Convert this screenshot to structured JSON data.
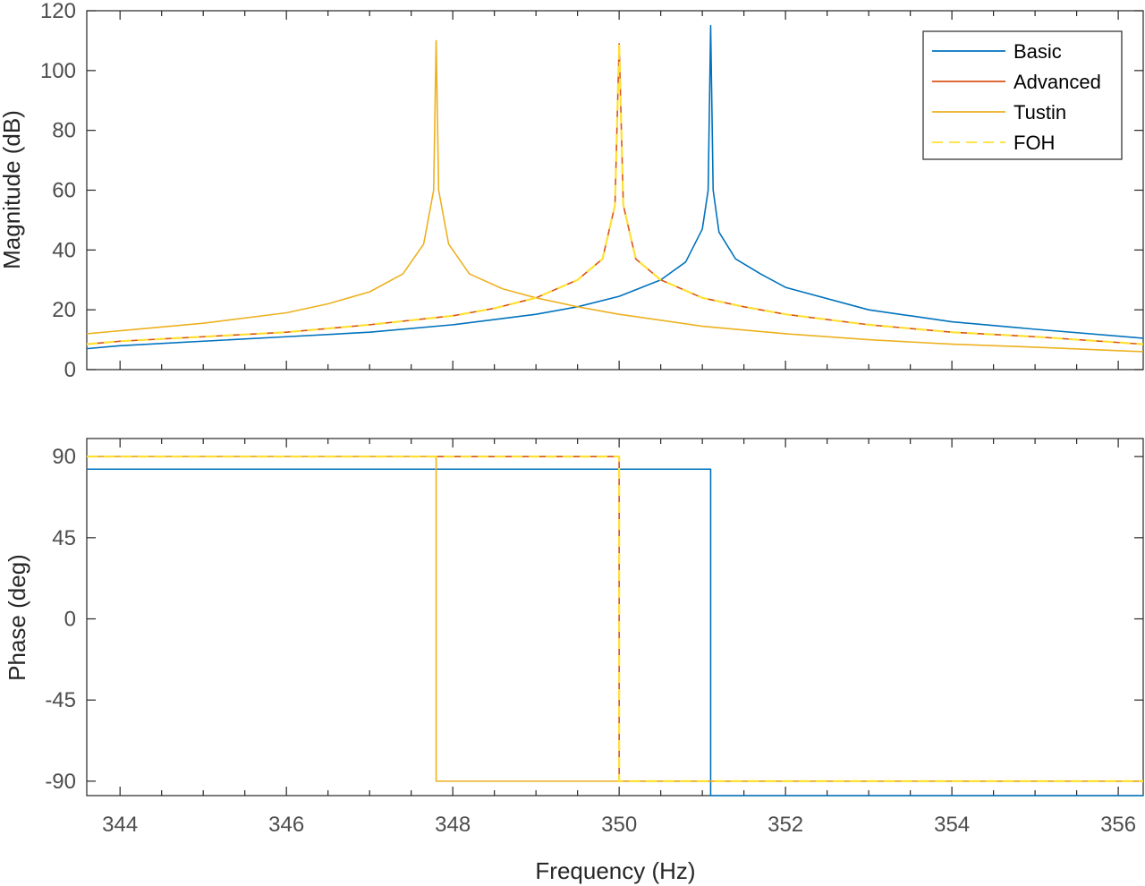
{
  "chart_data": [
    {
      "type": "line",
      "panel": "magnitude",
      "ylabel": "Magnitude (dB)",
      "xlim": [
        343.6,
        356.3
      ],
      "ylim": [
        0,
        120
      ],
      "yticks": [
        0,
        20,
        40,
        60,
        80,
        100,
        120
      ],
      "yticklabels": [
        "0",
        "20",
        "40",
        "60",
        "80",
        "100",
        "120"
      ],
      "grid": false,
      "legend": {
        "location": "top-right",
        "entries": [
          {
            "name": "Basic",
            "color": "#0072BD",
            "style": "solid"
          },
          {
            "name": "Advanced",
            "color": "#D95319",
            "style": "solid"
          },
          {
            "name": "Tustin",
            "color": "#EDB120",
            "style": "solid"
          },
          {
            "name": "FOH",
            "color": "#FFE135",
            "style": "dashed"
          }
        ]
      },
      "series": [
        {
          "name": "Basic",
          "color": "#0072BD",
          "style": "solid",
          "x": [
            343.6,
            344,
            345,
            346,
            347,
            348,
            349,
            349.5,
            350,
            350.5,
            350.8,
            351,
            351.07,
            351.1,
            351.13,
            351.2,
            351.4,
            351.7,
            352,
            353,
            354,
            355,
            356.3
          ],
          "y": [
            7,
            8,
            9.5,
            11,
            12.5,
            15,
            18.5,
            21,
            24.5,
            30,
            36,
            47,
            60,
            115,
            60,
            46,
            37,
            32,
            27.5,
            20,
            16,
            13.5,
            10.5
          ]
        },
        {
          "name": "Advanced",
          "color": "#D95319",
          "style": "solid",
          "x": [
            343.6,
            344,
            345,
            346,
            347,
            348,
            348.5,
            349,
            349.5,
            349.8,
            349.95,
            350,
            350.05,
            350.2,
            350.5,
            351,
            351.5,
            352,
            353,
            354,
            355,
            356.3
          ],
          "y": [
            8.5,
            9.5,
            11,
            12.5,
            15,
            18,
            20.5,
            24,
            30,
            37,
            55,
            109,
            55,
            37,
            30,
            24,
            21,
            18.5,
            15,
            12.5,
            11,
            8.5
          ]
        },
        {
          "name": "Tustin",
          "color": "#EDB120",
          "style": "solid",
          "x": [
            343.6,
            344,
            345,
            346,
            346.5,
            347,
            347.4,
            347.65,
            347.77,
            347.8,
            347.83,
            347.95,
            348.2,
            348.6,
            349,
            349.5,
            350,
            351,
            352,
            353,
            354,
            355,
            356.3
          ],
          "y": [
            12,
            13,
            15.5,
            19,
            22,
            26,
            32,
            42,
            60,
            110,
            60,
            42,
            32,
            27,
            24,
            21,
            18.5,
            14.5,
            12,
            10,
            8.5,
            7.5,
            6
          ]
        },
        {
          "name": "FOH",
          "color": "#FFE135",
          "style": "dashed",
          "x": [
            343.6,
            344,
            345,
            346,
            347,
            348,
            348.5,
            349,
            349.5,
            349.8,
            349.95,
            350,
            350.05,
            350.2,
            350.5,
            351,
            351.5,
            352,
            353,
            354,
            355,
            356.3
          ],
          "y": [
            8.5,
            9.5,
            11,
            12.5,
            15,
            18,
            20.5,
            24,
            30,
            37,
            55,
            109,
            55,
            37,
            30,
            24,
            21,
            18.5,
            15,
            12.5,
            11,
            8.5
          ]
        }
      ]
    },
    {
      "type": "line",
      "panel": "phase",
      "xlabel": "Frequency (Hz)",
      "ylabel": "Phase (deg)",
      "xlim": [
        343.6,
        356.3
      ],
      "ylim": [
        -98,
        100
      ],
      "xticks": [
        344,
        346,
        348,
        350,
        352,
        354,
        356
      ],
      "xticklabels": [
        "344",
        "346",
        "348",
        "350",
        "352",
        "354",
        "356"
      ],
      "yticks": [
        -90,
        -45,
        0,
        45,
        90
      ],
      "yticklabels": [
        "-90",
        "-45",
        "0",
        "45",
        "90"
      ],
      "grid": false,
      "series": [
        {
          "name": "Basic",
          "color": "#0072BD",
          "style": "solid",
          "x": [
            343.6,
            351.1,
            351.1,
            356.3
          ],
          "y": [
            83,
            83,
            -98,
            -98
          ]
        },
        {
          "name": "Advanced",
          "color": "#D95319",
          "style": "solid",
          "x": [
            343.6,
            350.0,
            350.0,
            356.3
          ],
          "y": [
            90,
            90,
            -90,
            -90
          ]
        },
        {
          "name": "Tustin",
          "color": "#EDB120",
          "style": "solid",
          "x": [
            343.6,
            347.8,
            347.8,
            356.3
          ],
          "y": [
            90,
            90,
            -90,
            -90
          ]
        },
        {
          "name": "FOH",
          "color": "#FFE135",
          "style": "dashed",
          "x": [
            343.6,
            350.0,
            350.0,
            356.3
          ],
          "y": [
            90,
            90,
            -90,
            -90
          ]
        }
      ]
    }
  ]
}
